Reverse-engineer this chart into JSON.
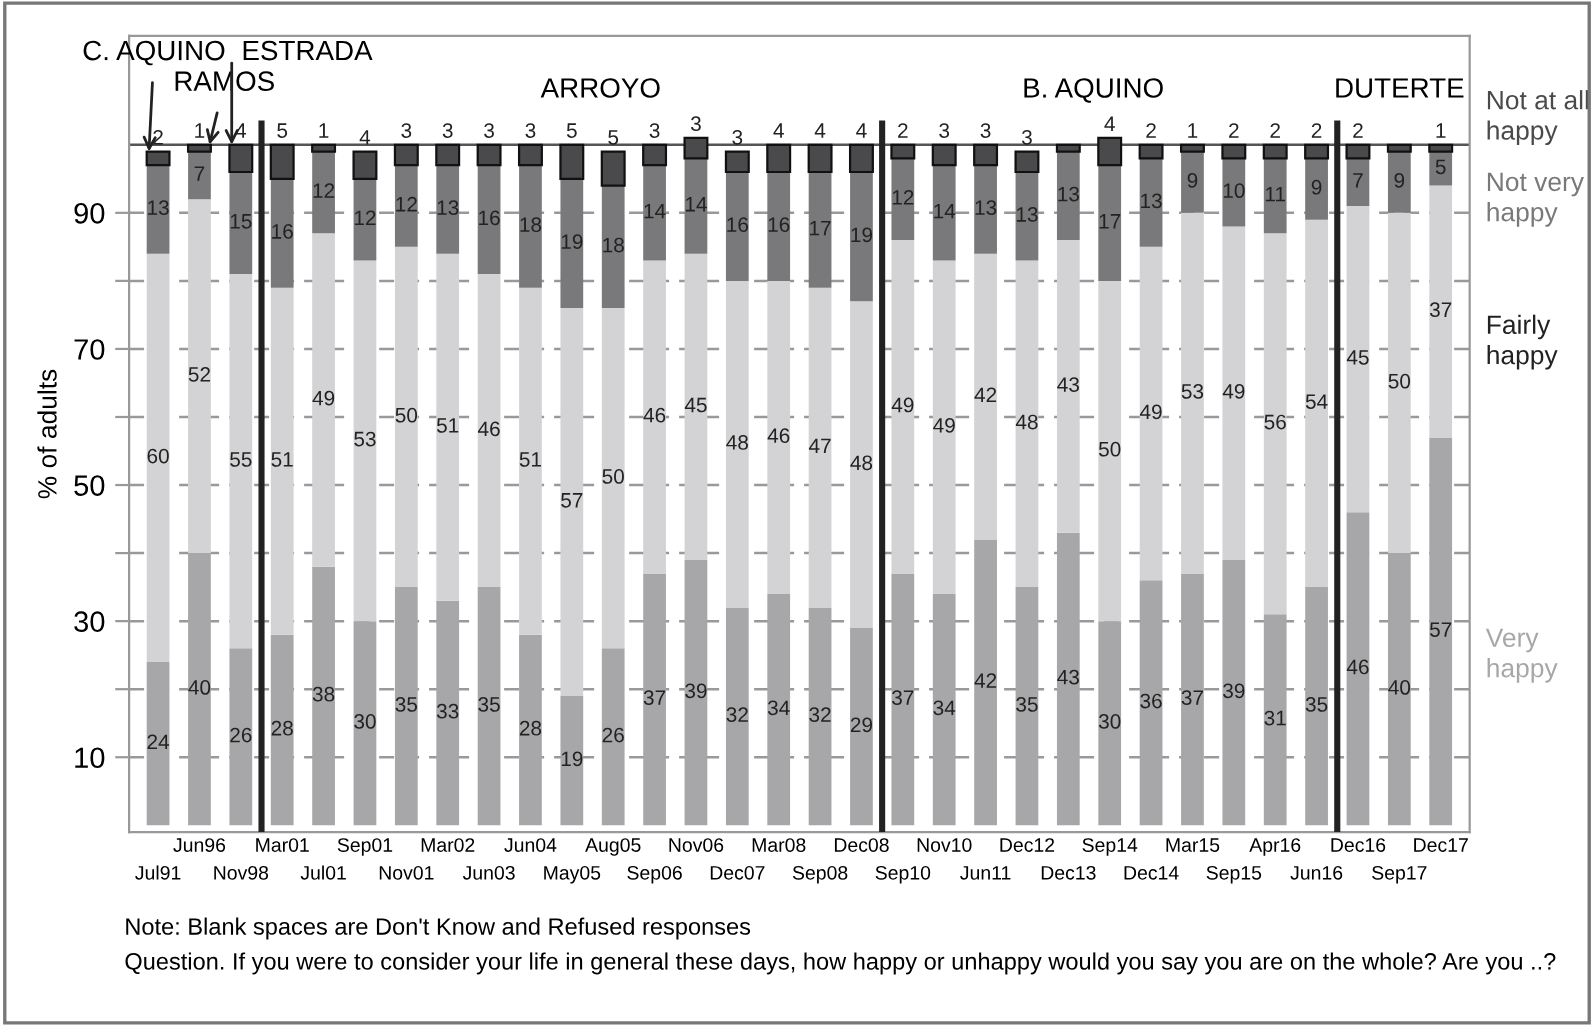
{
  "chart_data": {
    "type": "bar",
    "stacked": true,
    "ylabel": "% of adults",
    "categories": [
      "Jul91",
      "Jun96",
      "Nov98",
      "Mar01",
      "Jul01",
      "Sep01",
      "Nov01",
      "Mar02",
      "Jun03",
      "Jun04",
      "May05",
      "Aug05",
      "Sep06",
      "Nov06",
      "Dec07",
      "Mar08",
      "Sep08",
      "Dec08",
      "Sep10",
      "Nov10",
      "Jun11",
      "Dec12",
      "Dec13",
      "Sep14",
      "Dec14",
      "Mar15",
      "Sep15",
      "Apr16",
      "Jun16",
      "Dec16",
      "Sep17",
      "Dec17"
    ],
    "series": [
      {
        "name": "Very happy",
        "color": "#a7a7a9",
        "values": [
          24,
          40,
          26,
          28,
          38,
          30,
          35,
          33,
          35,
          28,
          19,
          26,
          37,
          39,
          32,
          34,
          32,
          29,
          37,
          34,
          42,
          35,
          43,
          30,
          36,
          37,
          39,
          31,
          35,
          46,
          40,
          57
        ]
      },
      {
        "name": "Fairly happy",
        "color": "#d3d3d5",
        "values": [
          60,
          52,
          55,
          51,
          49,
          53,
          50,
          51,
          46,
          51,
          57,
          50,
          46,
          45,
          48,
          46,
          47,
          48,
          49,
          49,
          42,
          48,
          43,
          50,
          49,
          53,
          49,
          56,
          54,
          45,
          50,
          37
        ]
      },
      {
        "name": "Not very happy",
        "color": "#79797b",
        "values": [
          13,
          7,
          15,
          16,
          12,
          12,
          12,
          13,
          16,
          18,
          19,
          18,
          14,
          14,
          16,
          16,
          17,
          19,
          12,
          14,
          13,
          13,
          13,
          17,
          13,
          9,
          10,
          11,
          9,
          7,
          9,
          5
        ]
      },
      {
        "name": "Not at all happy",
        "color": "#4a4a4c",
        "values": [
          2,
          1,
          4,
          5,
          1,
          4,
          3,
          3,
          3,
          3,
          5,
          5,
          3,
          3,
          3,
          4,
          4,
          4,
          2,
          3,
          3,
          3,
          1,
          4,
          2,
          1,
          2,
          2,
          2,
          2,
          1,
          1
        ],
        "value_labels": [
          "2",
          "1",
          "4",
          "5",
          "1",
          "4",
          "3",
          "3",
          "3",
          "3",
          "5",
          "5",
          "3",
          "3",
          "3",
          "4",
          "4",
          "4",
          "2",
          "3",
          "3",
          "3",
          null,
          "4",
          "2",
          "1",
          "2",
          "2",
          "2",
          "2",
          null,
          "1"
        ]
      }
    ],
    "data_labels": true,
    "ylim": [
      -1,
      116
    ],
    "yticks": [
      10,
      {
        "value": 20,
        "label": null
      },
      30,
      {
        "value": 40,
        "label": null
      },
      50,
      {
        "value": 60,
        "label": null
      },
      70,
      {
        "value": 80,
        "label": null
      },
      90
    ],
    "grid": "y",
    "legend": "right",
    "ref_lines": [
      {
        "axis": "y",
        "value": 100,
        "label": null,
        "color": "#555555",
        "line_style": "solid"
      }
    ],
    "annotations": [
      {
        "text": "C. AQUINO",
        "x": "Jul91",
        "y": 99
      },
      {
        "text": "RAMOS",
        "x": "Jun96",
        "y": 100
      },
      {
        "text": "ESTRADA",
        "x": "Nov98",
        "y": 100
      },
      "ARROYO",
      "B. AQUINO",
      "DUTERTE",
      "Note: Blank spaces are Don't Know and Refused responses",
      "Question. If you were to consider your life in general these days, how happy or unhappy would you say you are on the whole? Are you ..?"
    ]
  }
}
